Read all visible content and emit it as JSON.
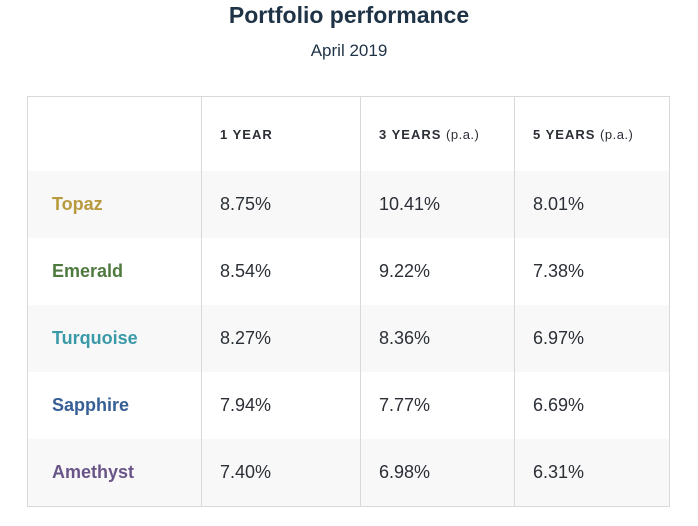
{
  "header": {
    "title": "Portfolio performance",
    "subtitle": "April 2019"
  },
  "table": {
    "columns": [
      {
        "label": "",
        "suffix": ""
      },
      {
        "label": "1 YEAR",
        "suffix": ""
      },
      {
        "label": "3 YEARS",
        "suffix": "(p.a.)"
      },
      {
        "label": "5 YEARS",
        "suffix": "(p.a.)"
      }
    ],
    "rows": [
      {
        "name": "Topaz",
        "color": "#b89a3e",
        "values": [
          "8.75%",
          "10.41%",
          "8.01%"
        ]
      },
      {
        "name": "Emerald",
        "color": "#4f7a3f",
        "values": [
          "8.54%",
          "9.22%",
          "7.38%"
        ]
      },
      {
        "name": "Turquoise",
        "color": "#3a9aa8",
        "values": [
          "8.27%",
          "8.36%",
          "6.97%"
        ]
      },
      {
        "name": "Sapphire",
        "color": "#365f95",
        "values": [
          "7.94%",
          "7.77%",
          "6.69%"
        ]
      },
      {
        "name": "Amethyst",
        "color": "#6a5588",
        "values": [
          "7.40%",
          "6.98%",
          "6.31%"
        ]
      }
    ]
  }
}
